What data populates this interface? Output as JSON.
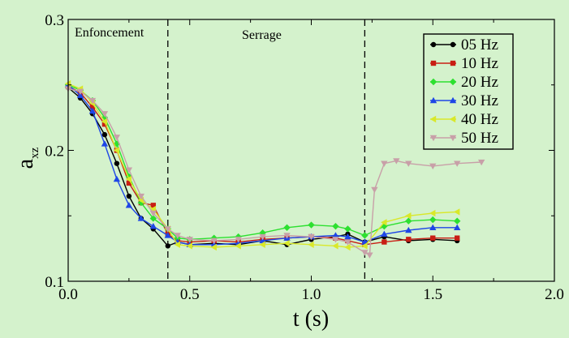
{
  "colors": {
    "background": "#d4f2cc",
    "axis": "#000000"
  },
  "chart_data": {
    "type": "line",
    "title": "",
    "xlabel": "t (s)",
    "ylabel_main": "a",
    "ylabel_sub": "xz",
    "xlim": [
      0.0,
      2.0
    ],
    "ylim": [
      0.1,
      0.3
    ],
    "xticks": [
      "0.0",
      "0.5",
      "1.0",
      "1.5",
      "2.0"
    ],
    "yticks": [
      "0.1",
      "0.2",
      "0.3"
    ],
    "grid": false,
    "legend_position": "top-right",
    "annotations": [
      {
        "text": "Enfoncement"
      },
      {
        "text": "Serrage"
      }
    ],
    "vlines": [
      0.41,
      1.22
    ],
    "series": [
      {
        "name": "05 Hz",
        "color": "#000000",
        "marker": "circle",
        "x": [
          0.0,
          0.05,
          0.1,
          0.15,
          0.2,
          0.25,
          0.3,
          0.35,
          0.41,
          0.45,
          0.5,
          0.6,
          0.7,
          0.8,
          0.9,
          1.0,
          1.1,
          1.15,
          1.22,
          1.3,
          1.4,
          1.5,
          1.6
        ],
        "y": [
          0.248,
          0.24,
          0.228,
          0.212,
          0.19,
          0.165,
          0.148,
          0.14,
          0.127,
          0.13,
          0.128,
          0.129,
          0.128,
          0.131,
          0.128,
          0.132,
          0.134,
          0.136,
          0.13,
          0.134,
          0.131,
          0.132,
          0.131
        ]
      },
      {
        "name": "10 Hz",
        "color": "#c81e14",
        "marker": "square",
        "x": [
          0.0,
          0.05,
          0.1,
          0.15,
          0.2,
          0.25,
          0.3,
          0.35,
          0.41,
          0.45,
          0.5,
          0.6,
          0.7,
          0.8,
          0.9,
          1.0,
          1.1,
          1.15,
          1.22,
          1.3,
          1.4,
          1.5,
          1.6
        ],
        "y": [
          0.249,
          0.244,
          0.233,
          0.22,
          0.2,
          0.175,
          0.16,
          0.158,
          0.136,
          0.131,
          0.13,
          0.131,
          0.13,
          0.132,
          0.133,
          0.134,
          0.133,
          0.131,
          0.128,
          0.13,
          0.132,
          0.133,
          0.133
        ]
      },
      {
        "name": "20 Hz",
        "color": "#2de030",
        "marker": "diamond",
        "x": [
          0.0,
          0.05,
          0.1,
          0.15,
          0.2,
          0.25,
          0.3,
          0.35,
          0.41,
          0.45,
          0.5,
          0.6,
          0.7,
          0.8,
          0.9,
          1.0,
          1.1,
          1.15,
          1.22,
          1.3,
          1.4,
          1.5,
          1.6
        ],
        "y": [
          0.25,
          0.246,
          0.238,
          0.225,
          0.205,
          0.18,
          0.16,
          0.148,
          0.14,
          0.133,
          0.132,
          0.133,
          0.134,
          0.137,
          0.141,
          0.143,
          0.142,
          0.14,
          0.135,
          0.142,
          0.146,
          0.147,
          0.146
        ]
      },
      {
        "name": "30 Hz",
        "color": "#1e46e6",
        "marker": "triangle-up",
        "x": [
          0.0,
          0.05,
          0.1,
          0.15,
          0.2,
          0.25,
          0.3,
          0.35,
          0.41,
          0.45,
          0.5,
          0.6,
          0.7,
          0.8,
          0.9,
          1.0,
          1.1,
          1.15,
          1.22,
          1.3,
          1.4,
          1.5,
          1.6
        ],
        "y": [
          0.25,
          0.242,
          0.23,
          0.205,
          0.178,
          0.158,
          0.148,
          0.142,
          0.135,
          0.13,
          0.128,
          0.128,
          0.129,
          0.131,
          0.133,
          0.134,
          0.135,
          0.134,
          0.13,
          0.136,
          0.139,
          0.141,
          0.141
        ]
      },
      {
        "name": "40 Hz",
        "color": "#d9e82a",
        "marker": "triangle-left",
        "x": [
          0.0,
          0.05,
          0.1,
          0.15,
          0.2,
          0.25,
          0.3,
          0.35,
          0.41,
          0.45,
          0.5,
          0.6,
          0.7,
          0.8,
          0.9,
          1.0,
          1.1,
          1.15,
          1.22,
          1.3,
          1.4,
          1.5,
          1.6
        ],
        "y": [
          0.251,
          0.247,
          0.236,
          0.222,
          0.2,
          0.178,
          0.162,
          0.155,
          0.14,
          0.128,
          0.127,
          0.126,
          0.127,
          0.128,
          0.129,
          0.128,
          0.127,
          0.126,
          0.127,
          0.145,
          0.15,
          0.152,
          0.153
        ]
      },
      {
        "name": "50 Hz",
        "color": "#c8a0a8",
        "marker": "triangle-down",
        "x": [
          0.0,
          0.05,
          0.1,
          0.15,
          0.2,
          0.25,
          0.3,
          0.35,
          0.41,
          0.45,
          0.5,
          0.6,
          0.7,
          0.8,
          0.9,
          1.0,
          1.1,
          1.15,
          1.22,
          1.24,
          1.26,
          1.3,
          1.35,
          1.4,
          1.5,
          1.6,
          1.7
        ],
        "y": [
          0.247,
          0.245,
          0.238,
          0.228,
          0.21,
          0.185,
          0.165,
          0.152,
          0.14,
          0.135,
          0.132,
          0.131,
          0.132,
          0.134,
          0.135,
          0.134,
          0.132,
          0.13,
          0.122,
          0.12,
          0.17,
          0.19,
          0.192,
          0.19,
          0.188,
          0.19,
          0.191
        ]
      }
    ]
  }
}
